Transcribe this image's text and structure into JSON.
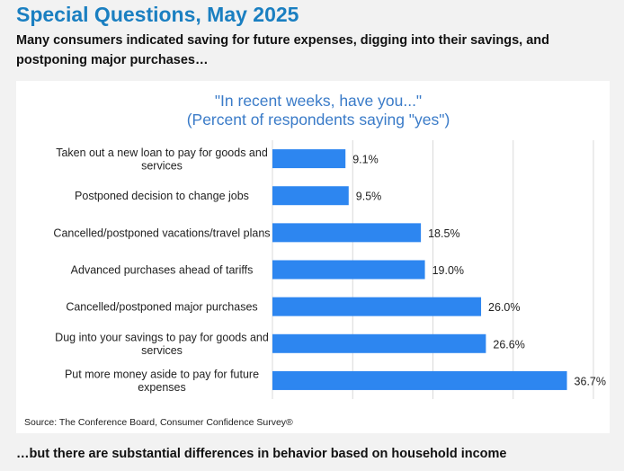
{
  "header": {
    "title": "Special Questions, May 2025",
    "intro": "Many consumers indicated saving for future expenses, digging into their savings, and postponing major purchases…"
  },
  "footer": {
    "outro": "…but there are substantial differences in behavior based on household income"
  },
  "chart_data": {
    "type": "bar",
    "orientation": "horizontal",
    "title": "\"In recent weeks, have you...\"",
    "subtitle": "(Percent of respondents saying \"yes\")",
    "categories": [
      "Taken out a new loan to pay for goods and services",
      "Postponed decision to change jobs",
      "Cancelled/postponed vacations/travel plans",
      "Advanced purchases ahead of tariffs",
      "Cancelled/postponed major purchases",
      "Dug into your savings to pay for goods and services",
      "Put more money aside to pay for future expenses"
    ],
    "category_lines": [
      [
        "Taken out a new loan to pay for goods and",
        "services"
      ],
      [
        "Postponed decision to change jobs"
      ],
      [
        "Cancelled/postponed vacations/travel plans"
      ],
      [
        "Advanced purchases ahead of tariffs"
      ],
      [
        "Cancelled/postponed major purchases"
      ],
      [
        "Dug into your savings to pay for goods and",
        "services"
      ],
      [
        "Put more money aside to pay for future",
        "expenses"
      ]
    ],
    "values": [
      9.1,
      9.5,
      18.5,
      19.0,
      26.0,
      26.6,
      36.7
    ],
    "data_labels": [
      "9.1%",
      "9.5%",
      "18.5%",
      "19.0%",
      "26.0%",
      "26.6%",
      "36.7%"
    ],
    "xlim": [
      0,
      40
    ],
    "gridlines": [
      0,
      10,
      20,
      30,
      40
    ],
    "grid": true,
    "legend": "none",
    "source": "Source: The Conference Board, Consumer Confidence Survey®",
    "colors": {
      "bar": "#2d86f0",
      "title": "#3a7bc8",
      "grid": "#d9d9d9"
    }
  }
}
